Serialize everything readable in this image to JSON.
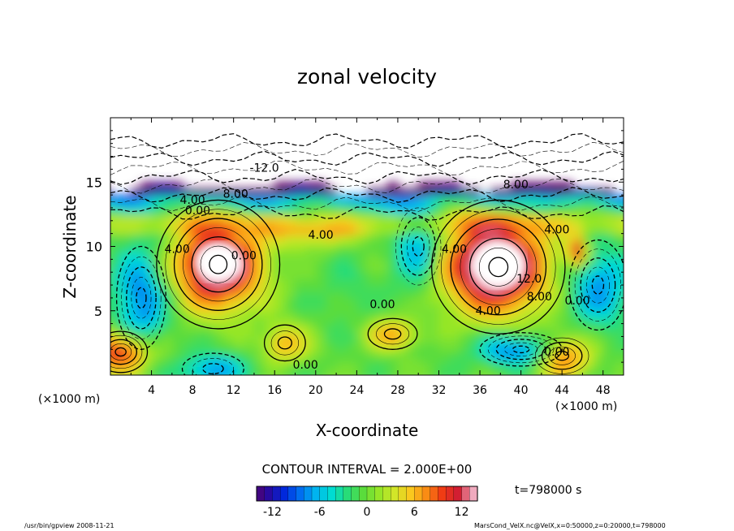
{
  "chart_data": {
    "type": "heatmap",
    "title": "zonal velocity",
    "xlabel": "X-coordinate",
    "ylabel": "Z-coordinate",
    "x_unit_left": "(×1000 m)",
    "x_unit_right": "(×1000 m)",
    "xlim": [
      0,
      50
    ],
    "ylim": [
      0,
      20
    ],
    "x_ticks": [
      4,
      8,
      12,
      16,
      20,
      24,
      28,
      32,
      36,
      40,
      44,
      48
    ],
    "y_ticks": [
      5,
      10,
      15
    ],
    "contour_interval_text": "CONTOUR INTERVAL = 2.000E+00",
    "time_text": "t=798000 s",
    "colorbar": {
      "range": [
        -14,
        14
      ],
      "ticks": [
        -12,
        -6,
        0,
        6,
        12
      ]
    },
    "contour_labels": [
      {
        "text": "-12.0",
        "x": 15.0,
        "z": 15.8
      },
      {
        "text": "8.00",
        "x": 12.2,
        "z": 13.8
      },
      {
        "text": "4.00",
        "x": 8.0,
        "z": 13.3
      },
      {
        "text": "0.00",
        "x": 8.5,
        "z": 12.5
      },
      {
        "text": "4.00",
        "x": 20.5,
        "z": 10.6
      },
      {
        "text": "4.00",
        "x": 6.5,
        "z": 9.5
      },
      {
        "text": "0.00",
        "x": 13.0,
        "z": 9.0
      },
      {
        "text": "8.00",
        "x": 39.5,
        "z": 14.5
      },
      {
        "text": "4.00",
        "x": 43.5,
        "z": 11.0
      },
      {
        "text": "4.00",
        "x": 33.5,
        "z": 9.5
      },
      {
        "text": "12.0",
        "x": 40.8,
        "z": 7.2
      },
      {
        "text": "8.00",
        "x": 41.8,
        "z": 5.8
      },
      {
        "text": "0.00",
        "x": 26.5,
        "z": 5.2
      },
      {
        "text": "4.00",
        "x": 36.8,
        "z": 4.7
      },
      {
        "text": "0.00",
        "x": 45.5,
        "z": 5.5
      },
      {
        "text": "0.00",
        "x": 19.0,
        "z": 0.5
      },
      {
        "text": "0.00",
        "x": 43.5,
        "z": 1.5
      }
    ]
  },
  "footer": {
    "program": "/usr/bin/gpview   2008-11-21",
    "source": "MarsCond_VelX.nc@VelX,x=0:50000,z=0:20000,t=798000"
  }
}
